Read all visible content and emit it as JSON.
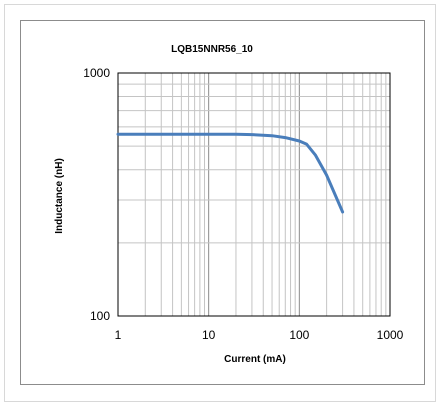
{
  "chart_data": {
    "type": "line",
    "title": "LQB15NNR56_10",
    "xlabel": "Current (mA)",
    "ylabel": "Inductance (nH)",
    "x_scale": "log",
    "y_scale": "log",
    "xlim": [
      1,
      1000
    ],
    "ylim": [
      100,
      1000
    ],
    "x_ticks": [
      1,
      10,
      100,
      1000
    ],
    "x_tick_labels": [
      "1",
      "10",
      "100",
      "1000"
    ],
    "y_ticks": [
      100,
      1000
    ],
    "y_tick_labels": [
      "100",
      "1000"
    ],
    "grid": true,
    "legend": "none",
    "series": [
      {
        "color": "#4a7ebb",
        "x": [
          1,
          5,
          10,
          20,
          30,
          50,
          70,
          100,
          120,
          150,
          200,
          300
        ],
        "y": [
          560,
          560,
          560,
          560,
          558,
          552,
          542,
          525,
          510,
          460,
          380,
          268
        ]
      }
    ]
  }
}
